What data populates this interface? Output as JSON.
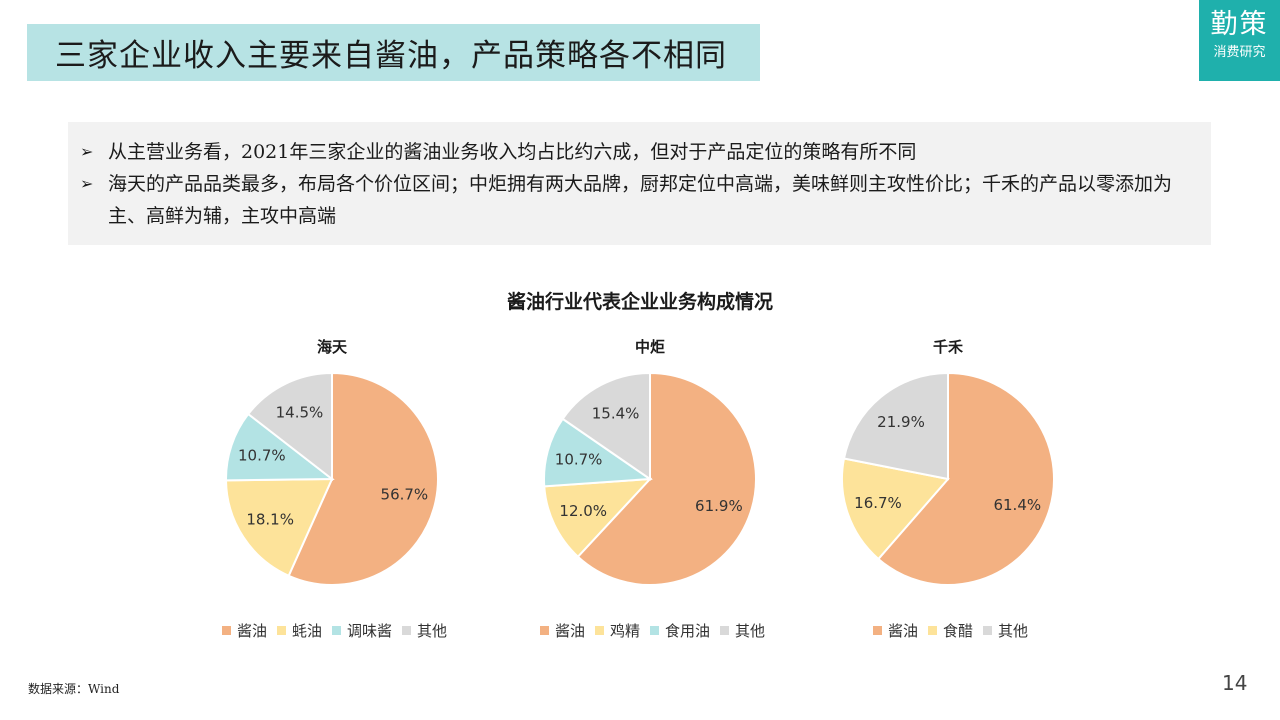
{
  "header": {
    "title": "三家企业收入主要来自酱油，产品策略各不相同",
    "logo_main": "勤策",
    "logo_sub": "消费研究"
  },
  "summary": {
    "bullet_char": "➢",
    "items": [
      "从主营业务看，2021年三家企业的酱油业务收入均占比约六成，但对于产品定位的策略有所不同",
      "海天的产品品类最多，布局各个价位区间；中炬拥有两大品牌，厨邦定位中高端，美味鲜则主攻性价比；千禾的产品以零添加为主、高鲜为辅，主攻中高端"
    ]
  },
  "footer": {
    "source": "数据来源：Wind",
    "page_number": "14"
  },
  "colors": {
    "accent": "#1fb0ac",
    "title_bg": "#b7e3e4",
    "soy": "#f3b182",
    "yellow": "#fde39a",
    "teal": "#b3e3e4",
    "gray": "#d9d9d9"
  },
  "chart_data": {
    "type": "pie",
    "title": "酱油行业代表企业业务构成情况",
    "charts": [
      {
        "name": "海天",
        "slices": [
          {
            "label": "酱油",
            "value": 56.7,
            "display": "56.7%",
            "color": "#f3b182"
          },
          {
            "label": "蚝油",
            "value": 18.1,
            "display": "18.1%",
            "color": "#fde39a"
          },
          {
            "label": "调味酱",
            "value": 10.7,
            "display": "10.7%",
            "color": "#b3e3e4"
          },
          {
            "label": "其他",
            "value": 14.5,
            "display": "14.5%",
            "color": "#d9d9d9"
          }
        ]
      },
      {
        "name": "中炬",
        "slices": [
          {
            "label": "酱油",
            "value": 61.9,
            "display": "61.9%",
            "color": "#f3b182"
          },
          {
            "label": "鸡精",
            "value": 12.0,
            "display": "12.0%",
            "color": "#fde39a"
          },
          {
            "label": "食用油",
            "value": 10.7,
            "display": "10.7%",
            "color": "#b3e3e4"
          },
          {
            "label": "其他",
            "value": 15.4,
            "display": "15.4%",
            "color": "#d9d9d9"
          }
        ]
      },
      {
        "name": "千禾",
        "slices": [
          {
            "label": "酱油",
            "value": 61.4,
            "display": "61.4%",
            "color": "#f3b182"
          },
          {
            "label": "食醋",
            "value": 16.7,
            "display": "16.7%",
            "color": "#fde39a"
          },
          {
            "label": "其他",
            "value": 21.9,
            "display": "21.9%",
            "color": "#d9d9d9"
          }
        ]
      }
    ]
  }
}
